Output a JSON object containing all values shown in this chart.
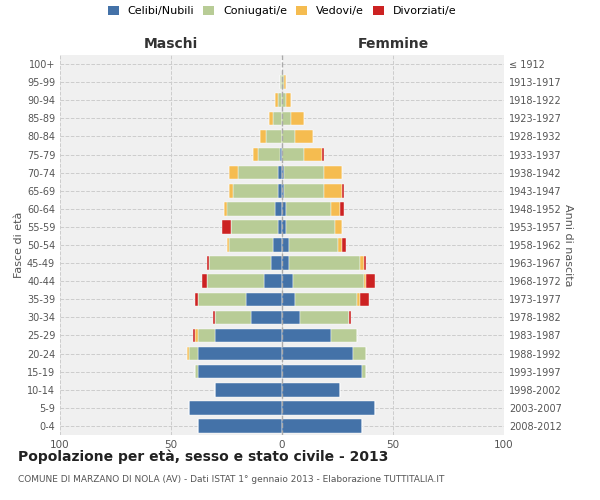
{
  "age_groups": [
    "0-4",
    "5-9",
    "10-14",
    "15-19",
    "20-24",
    "25-29",
    "30-34",
    "35-39",
    "40-44",
    "45-49",
    "50-54",
    "55-59",
    "60-64",
    "65-69",
    "70-74",
    "75-79",
    "80-84",
    "85-89",
    "90-94",
    "95-99",
    "100+"
  ],
  "birth_years": [
    "2008-2012",
    "2003-2007",
    "1998-2002",
    "1993-1997",
    "1988-1992",
    "1983-1987",
    "1978-1982",
    "1973-1977",
    "1968-1972",
    "1963-1967",
    "1958-1962",
    "1953-1957",
    "1948-1952",
    "1943-1947",
    "1938-1942",
    "1933-1937",
    "1928-1932",
    "1923-1927",
    "1918-1922",
    "1913-1917",
    "≤ 1912"
  ],
  "male": {
    "celibi": [
      38,
      42,
      30,
      38,
      38,
      30,
      14,
      16,
      8,
      5,
      4,
      2,
      3,
      2,
      2,
      1,
      0,
      0,
      0,
      0,
      0
    ],
    "coniugati": [
      0,
      0,
      0,
      1,
      4,
      8,
      16,
      22,
      26,
      28,
      20,
      21,
      22,
      20,
      18,
      10,
      7,
      4,
      2,
      1,
      0
    ],
    "vedovi": [
      0,
      0,
      0,
      0,
      1,
      1,
      0,
      0,
      0,
      0,
      1,
      0,
      1,
      2,
      4,
      2,
      3,
      2,
      1,
      0,
      0
    ],
    "divorziati": [
      0,
      0,
      0,
      0,
      0,
      1,
      1,
      1,
      2,
      1,
      0,
      4,
      0,
      0,
      0,
      0,
      0,
      0,
      0,
      0,
      0
    ]
  },
  "female": {
    "nubili": [
      36,
      42,
      26,
      36,
      32,
      22,
      8,
      6,
      5,
      3,
      3,
      2,
      2,
      1,
      1,
      0,
      0,
      0,
      0,
      0,
      0
    ],
    "coniugate": [
      0,
      0,
      0,
      2,
      6,
      12,
      22,
      28,
      32,
      32,
      22,
      22,
      20,
      18,
      18,
      10,
      6,
      4,
      2,
      1,
      0
    ],
    "vedove": [
      0,
      0,
      0,
      0,
      0,
      0,
      0,
      1,
      1,
      2,
      2,
      3,
      4,
      8,
      8,
      8,
      8,
      6,
      2,
      1,
      0
    ],
    "divorziate": [
      0,
      0,
      0,
      0,
      0,
      0,
      1,
      4,
      4,
      1,
      2,
      0,
      2,
      1,
      0,
      1,
      0,
      0,
      0,
      0,
      0
    ]
  },
  "colors": {
    "celibi": "#4472a8",
    "coniugati": "#b8cc96",
    "vedovi": "#f5bc50",
    "divorziati": "#cc2222"
  },
  "legend_labels": [
    "Celibi/Nubili",
    "Coniugati/e",
    "Vedovi/e",
    "Divorziati/e"
  ],
  "title": "Popolazione per età, sesso e stato civile - 2013",
  "subtitle": "COMUNE DI MARZANO DI NOLA (AV) - Dati ISTAT 1° gennaio 2013 - Elaborazione TUTTITALIA.IT",
  "xlabel_left": "Maschi",
  "xlabel_right": "Femmine",
  "ylabel_left": "Fasce di età",
  "ylabel_right": "Anni di nascita",
  "xlim": 100,
  "bg_color": "#f0f0f0"
}
